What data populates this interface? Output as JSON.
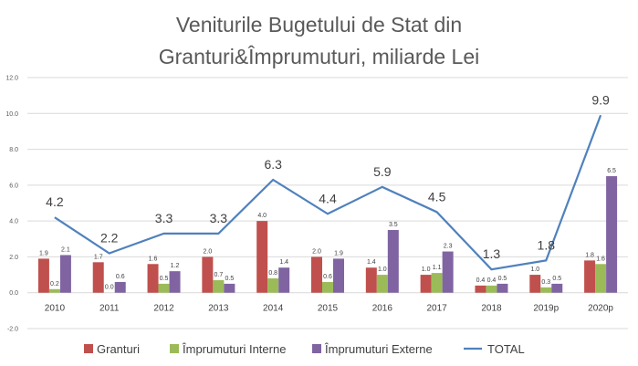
{
  "chart_data": {
    "type": "bar",
    "title_line1": "Veniturile Bugetului de Stat din",
    "title_line2": "Granturi&Împrumuturi, miliarde Lei",
    "categories": [
      "2010",
      "2011",
      "2012",
      "2013",
      "2014",
      "2015",
      "2016",
      "2017",
      "2018",
      "2019p",
      "2020p"
    ],
    "series": [
      {
        "name": "Granturi",
        "color": "#c0504d",
        "values": [
          1.9,
          1.7,
          1.6,
          2.0,
          4.0,
          2.0,
          1.4,
          1.0,
          0.4,
          1.0,
          1.8
        ],
        "labels": [
          "1.9",
          "1.7",
          "1.6",
          "2.0",
          "4.0",
          "2.0",
          "1.4",
          "1.0",
          "0.4",
          "1.0",
          "1.8"
        ]
      },
      {
        "name": "Împrumuturi Interne",
        "color": "#9bbb59",
        "values": [
          0.2,
          0.0,
          0.5,
          0.7,
          0.8,
          0.6,
          1.0,
          1.1,
          0.4,
          0.3,
          1.6
        ],
        "labels": [
          "0.2",
          "0.0",
          "0.5",
          "0.7",
          "0.8",
          "0.6",
          "1.0",
          "1.1",
          "0.4",
          "0.3",
          "1.6"
        ]
      },
      {
        "name": "Împrumuturi Externe",
        "color": "#8064a2",
        "values": [
          2.1,
          0.6,
          1.2,
          0.5,
          1.4,
          1.9,
          3.5,
          2.3,
          0.5,
          0.5,
          6.5
        ],
        "labels": [
          "2.1",
          "0.6",
          "1.2",
          "0.5",
          "1.4",
          "1.9",
          "3.5",
          "2.3",
          "0.5",
          "0.5",
          "6.5"
        ]
      }
    ],
    "line": {
      "name": "TOTAL",
      "color": "#4f81bd",
      "values": [
        4.2,
        2.2,
        3.3,
        3.3,
        6.3,
        4.4,
        5.9,
        4.5,
        1.3,
        1.8,
        9.9
      ],
      "labels": [
        "4.2",
        "2.2",
        "3.3",
        "3.3",
        "6.3",
        "4.4",
        "5.9",
        "4.5",
        "1.3",
        "1.8",
        "9.9"
      ]
    },
    "yticks": [
      "-2.0",
      "0.0",
      "2.0",
      "4.0",
      "6.0",
      "8.0",
      "10.0",
      "12.0"
    ],
    "ylim": [
      -2,
      12
    ],
    "grid": true,
    "legend_position": "bottom"
  }
}
